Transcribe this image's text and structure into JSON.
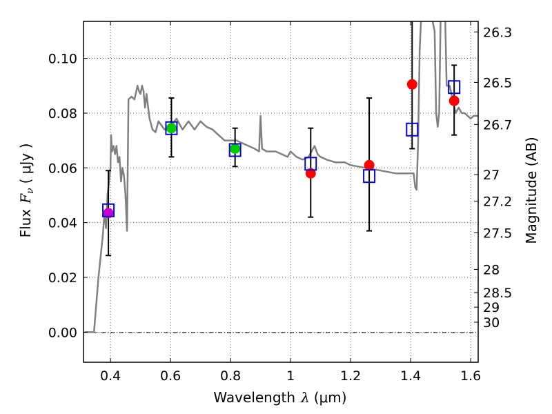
{
  "chart_data": {
    "type": "scatter",
    "xlabel_prefix": "Wavelength",
    "xlabel_symbol": "λ",
    "xlabel_unit": "(μm)",
    "ylabel_prefix": "Flux",
    "ylabel_symbol": "F",
    "ylabel_subscript": "ν",
    "ylabel_unit": "( μJy )",
    "y2label": "Magnitude (AB)",
    "xlim": [
      0.31,
      1.625
    ],
    "ylim": [
      -0.011,
      0.1135
    ],
    "xticks": [
      0.4,
      0.6,
      0.8,
      1,
      1.2,
      1.4,
      1.6
    ],
    "xtick_labels": [
      "0.4",
      "0.6",
      "0.8",
      "1",
      "1.2",
      "1.4",
      "1.6"
    ],
    "yticks": [
      0.0,
      0.02,
      0.04,
      0.06,
      0.08,
      0.1
    ],
    "ytick_labels": [
      "0.00",
      "0.02",
      "0.04",
      "0.06",
      "0.08",
      "0.10"
    ],
    "mag_ticks": [
      26.3,
      26.5,
      26.7,
      27,
      27.2,
      27.5,
      28,
      28.5,
      29,
      30
    ],
    "mag_tick_labels": [
      "26.3",
      "26.5",
      "26.7",
      "27",
      "27.2",
      "27.5",
      "28",
      "28.5",
      "29",
      "30"
    ],
    "grid": true,
    "colors": {
      "model": "#808080",
      "observed_red": "#ff0000",
      "observed_green": "#00cc00",
      "observed_magenta": "#cc00cc",
      "model_box": "#0000cc",
      "errorbar": "#000000"
    },
    "model_spectrum": {
      "name": "template",
      "x": [
        0.315,
        0.34,
        0.345,
        0.36,
        0.375,
        0.38,
        0.385,
        0.39,
        0.395,
        0.4,
        0.402,
        0.405,
        0.41,
        0.415,
        0.42,
        0.425,
        0.43,
        0.435,
        0.44,
        0.445,
        0.45,
        0.455,
        0.46,
        0.47,
        0.48,
        0.49,
        0.495,
        0.5,
        0.505,
        0.51,
        0.515,
        0.52,
        0.53,
        0.54,
        0.55,
        0.56,
        0.58,
        0.6,
        0.62,
        0.64,
        0.66,
        0.68,
        0.7,
        0.72,
        0.74,
        0.76,
        0.78,
        0.8,
        0.82,
        0.84,
        0.86,
        0.88,
        0.895,
        0.9,
        0.905,
        0.92,
        0.95,
        0.97,
        0.99,
        1.0,
        1.02,
        1.04,
        1.06,
        1.08,
        1.09,
        1.1,
        1.12,
        1.15,
        1.18,
        1.2,
        1.25,
        1.3,
        1.35,
        1.38,
        1.4,
        1.41,
        1.415,
        1.42,
        1.425,
        1.43,
        1.435,
        1.44,
        1.45,
        1.46,
        1.47,
        1.48,
        1.485,
        1.49,
        1.495,
        1.5,
        1.51,
        1.515,
        1.52,
        1.53,
        1.54,
        1.55,
        1.56,
        1.57,
        1.58,
        1.59,
        1.6,
        1.61,
        1.625
      ],
      "y": [
        0.0,
        0.0,
        0.0,
        0.02,
        0.036,
        0.044,
        0.038,
        0.05,
        0.055,
        0.06,
        0.072,
        0.066,
        0.068,
        0.065,
        0.068,
        0.062,
        0.064,
        0.055,
        0.06,
        0.057,
        0.05,
        0.037,
        0.085,
        0.086,
        0.085,
        0.09,
        0.088,
        0.087,
        0.09,
        0.088,
        0.082,
        0.087,
        0.078,
        0.074,
        0.073,
        0.077,
        0.074,
        0.075,
        0.078,
        0.074,
        0.077,
        0.074,
        0.077,
        0.075,
        0.074,
        0.072,
        0.07,
        0.07,
        0.07,
        0.069,
        0.068,
        0.067,
        0.066,
        0.079,
        0.067,
        0.066,
        0.066,
        0.065,
        0.064,
        0.066,
        0.064,
        0.063,
        0.064,
        0.068,
        0.065,
        0.064,
        0.063,
        0.062,
        0.062,
        0.061,
        0.06,
        0.059,
        0.058,
        0.058,
        0.058,
        0.058,
        0.053,
        0.052,
        0.07,
        0.103,
        0.115,
        0.115,
        0.115,
        0.115,
        0.115,
        0.11,
        0.08,
        0.075,
        0.08,
        0.115,
        0.115,
        0.115,
        0.09,
        0.09,
        0.085,
        0.08,
        0.082,
        0.08,
        0.08,
        0.079,
        0.078,
        0.079,
        0.079
      ]
    },
    "observed": [
      {
        "x": 0.393,
        "y": 0.0435,
        "err_low": 0.028,
        "err_high": 0.059,
        "color": "magenta"
      },
      {
        "x": 0.603,
        "y": 0.0745,
        "err_low": 0.064,
        "err_high": 0.0855,
        "color": "green"
      },
      {
        "x": 0.815,
        "y": 0.067,
        "err_low": 0.0605,
        "err_high": 0.0745,
        "color": "green"
      },
      {
        "x": 1.067,
        "y": 0.058,
        "err_low": 0.042,
        "err_high": 0.0745,
        "color": "red"
      },
      {
        "x": 1.262,
        "y": 0.061,
        "err_low": 0.037,
        "err_high": 0.0855,
        "color": "red"
      },
      {
        "x": 1.405,
        "y": 0.0905,
        "err_low": 0.067,
        "err_high": 0.114,
        "color": "red"
      },
      {
        "x": 1.545,
        "y": 0.0845,
        "err_low": 0.072,
        "err_high": 0.0975,
        "color": "red"
      }
    ],
    "model_boxes": [
      {
        "x": 0.393,
        "y": 0.0445
      },
      {
        "x": 0.603,
        "y": 0.0745
      },
      {
        "x": 0.815,
        "y": 0.0665
      },
      {
        "x": 1.067,
        "y": 0.0615
      },
      {
        "x": 1.262,
        "y": 0.057
      },
      {
        "x": 1.405,
        "y": 0.074
      },
      {
        "x": 1.545,
        "y": 0.0895
      }
    ]
  }
}
